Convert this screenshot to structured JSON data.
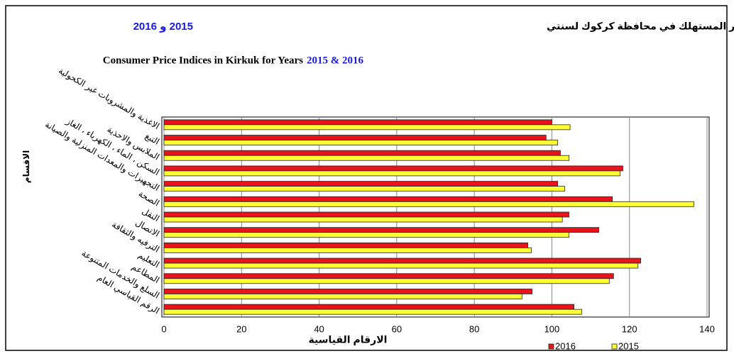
{
  "chart_data": {
    "type": "barh",
    "title_ar": "الارقام القياسية لاسعار المستهلك في محافظة كركوك لسنتي",
    "title_ar_years": "2015 و 2016",
    "title_en": "Consumer Price Indices in Kirkuk for Years",
    "title_en_years": "2015 & 2016",
    "y_label": "الاقسام",
    "x_label": "الارقام القياسية",
    "categories": [
      "الاغذية والمشروبات غير الكحولية",
      "التبغ",
      "الملابس والاحذية",
      "السكن ، الماء ، الكهرباء ، الغاز",
      "التجهيزات والمعدات المنزلية والصيانة",
      "الصحة",
      "النقل",
      "الاتصال",
      "الترفيه والثقافة",
      "التعليم",
      "المطاعم",
      "السلع والخدمات المتنوعة",
      "الرقم القياسي العام"
    ],
    "series": [
      {
        "name": "2016",
        "color": "#e8141c",
        "values": [
          100.0,
          98.5,
          102.2,
          118.3,
          101.5,
          115.6,
          104.4,
          112.1,
          93.8,
          122.9,
          115.9,
          94.9,
          105.7
        ]
      },
      {
        "name": "2015",
        "color": "#ffff33",
        "values": [
          104.7,
          101.5,
          104.4,
          117.6,
          103.3,
          136.6,
          102.7,
          104.4,
          94.7,
          122.2,
          114.8,
          92.3,
          107.7
        ]
      }
    ],
    "xlim": [
      0,
      140
    ],
    "xticks": [
      0,
      20,
      40,
      60,
      80,
      100,
      120,
      140
    ],
    "grid": true
  }
}
